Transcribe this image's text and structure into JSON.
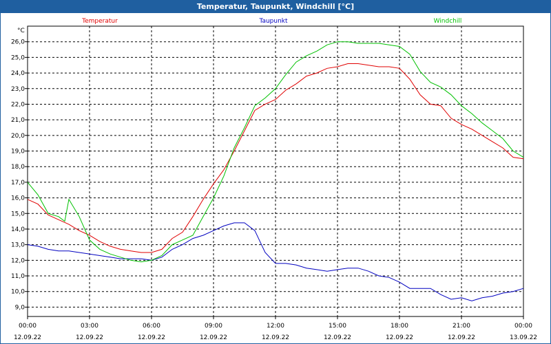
{
  "window": {
    "title": "Temperatur, Taupunkt, Windchill [°C]"
  },
  "chart_data": {
    "type": "line",
    "title": "Temperatur, Taupunkt, Windchill [°C]",
    "ylabel": "°C",
    "ylim": [
      8.4,
      27.0
    ],
    "xlim_hours": [
      0,
      24
    ],
    "grid": true,
    "y_ticks": [
      9.0,
      10.0,
      11.0,
      12.0,
      13.0,
      14.0,
      15.0,
      16.0,
      17.0,
      18.0,
      19.0,
      20.0,
      21.0,
      22.0,
      23.0,
      24.0,
      25.0,
      26.0
    ],
    "x_ticks": [
      {
        "time": "00:00",
        "date": "12.09.22"
      },
      {
        "time": "03:00",
        "date": "12.09.22"
      },
      {
        "time": "06:00",
        "date": "12.09.22"
      },
      {
        "time": "09:00",
        "date": "12.09.22"
      },
      {
        "time": "12:00",
        "date": "12.09.22"
      },
      {
        "time": "15:00",
        "date": "12.09.22"
      },
      {
        "time": "18:00",
        "date": "12.09.22"
      },
      {
        "time": "21:00",
        "date": "12.09.22"
      },
      {
        "time": "00:00",
        "date": "13.09.22"
      }
    ],
    "series": [
      {
        "name": "Temperatur",
        "color": "#e00000",
        "x": [
          0.0,
          0.5,
          1.0,
          1.5,
          2.0,
          2.5,
          3.0,
          3.5,
          4.0,
          4.5,
          5.0,
          5.5,
          6.0,
          6.5,
          7.0,
          7.5,
          8.0,
          8.5,
          9.0,
          9.5,
          10.0,
          10.5,
          11.0,
          11.5,
          12.0,
          12.5,
          13.0,
          13.5,
          14.0,
          14.5,
          15.0,
          15.5,
          16.0,
          16.5,
          17.0,
          17.5,
          18.0,
          18.5,
          19.0,
          19.5,
          20.0,
          20.5,
          21.0,
          21.5,
          22.0,
          22.5,
          23.0,
          23.5,
          24.0
        ],
        "y": [
          15.9,
          15.6,
          14.9,
          14.6,
          14.3,
          13.9,
          13.6,
          13.2,
          12.9,
          12.7,
          12.6,
          12.5,
          12.5,
          12.7,
          13.4,
          13.8,
          14.8,
          15.9,
          16.9,
          17.8,
          19.0,
          20.3,
          21.6,
          22.0,
          22.3,
          22.9,
          23.3,
          23.8,
          24.0,
          24.3,
          24.4,
          24.6,
          24.6,
          24.5,
          24.4,
          24.4,
          24.3,
          23.6,
          22.6,
          22.0,
          21.9,
          21.1,
          20.7,
          20.4,
          20.0,
          19.6,
          19.2,
          18.6,
          18.5
        ]
      },
      {
        "name": "Taupunkt",
        "color": "#0000c0",
        "x": [
          0.0,
          0.5,
          1.0,
          1.5,
          2.0,
          2.5,
          3.0,
          3.5,
          4.0,
          4.5,
          5.0,
          5.5,
          6.0,
          6.5,
          7.0,
          7.5,
          8.0,
          8.5,
          9.0,
          9.5,
          10.0,
          10.5,
          11.0,
          11.5,
          12.0,
          12.5,
          13.0,
          13.5,
          14.0,
          14.5,
          15.0,
          15.5,
          16.0,
          16.5,
          17.0,
          17.5,
          18.0,
          18.5,
          19.0,
          19.5,
          20.0,
          20.5,
          21.0,
          21.5,
          22.0,
          22.5,
          23.0,
          23.5,
          24.0
        ],
        "y": [
          13.0,
          12.9,
          12.7,
          12.6,
          12.6,
          12.5,
          12.4,
          12.3,
          12.2,
          12.1,
          12.1,
          12.1,
          12.0,
          12.2,
          12.7,
          13.0,
          13.4,
          13.6,
          13.9,
          14.2,
          14.4,
          14.4,
          13.9,
          12.5,
          11.8,
          11.8,
          11.7,
          11.5,
          11.4,
          11.3,
          11.4,
          11.5,
          11.5,
          11.3,
          11.0,
          10.9,
          10.6,
          10.2,
          10.2,
          10.2,
          9.8,
          9.5,
          9.6,
          9.4,
          9.6,
          9.7,
          9.9,
          10.0,
          10.2
        ]
      },
      {
        "name": "Windchill",
        "color": "#00c000",
        "x": [
          0.0,
          0.5,
          1.0,
          1.5,
          1.8,
          2.0,
          2.5,
          3.0,
          3.5,
          4.0,
          4.5,
          5.0,
          5.5,
          6.0,
          6.5,
          7.0,
          7.5,
          8.0,
          8.5,
          9.0,
          9.5,
          10.0,
          10.5,
          11.0,
          11.5,
          12.0,
          12.5,
          13.0,
          13.5,
          14.0,
          14.5,
          15.0,
          15.5,
          16.0,
          16.5,
          17.0,
          17.5,
          18.0,
          18.5,
          19.0,
          19.5,
          20.0,
          20.5,
          21.0,
          21.5,
          22.0,
          22.5,
          23.0,
          23.5,
          24.0
        ],
        "y": [
          17.0,
          16.2,
          15.0,
          14.8,
          14.5,
          15.9,
          14.8,
          13.3,
          12.7,
          12.4,
          12.2,
          12.0,
          11.9,
          12.0,
          12.3,
          13.0,
          13.3,
          13.6,
          14.8,
          16.0,
          17.4,
          19.2,
          20.5,
          21.9,
          22.4,
          23.0,
          23.9,
          24.7,
          25.1,
          25.4,
          25.8,
          26.0,
          26.0,
          25.9,
          25.9,
          25.9,
          25.8,
          25.7,
          25.2,
          24.1,
          23.4,
          23.1,
          22.6,
          21.9,
          21.4,
          20.8,
          20.3,
          19.8,
          19.0,
          18.6
        ]
      }
    ]
  }
}
